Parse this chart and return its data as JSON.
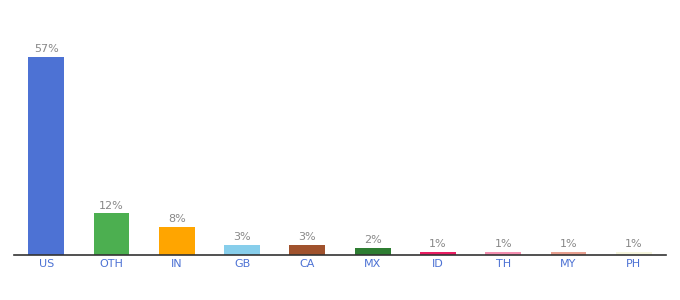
{
  "categories": [
    "US",
    "OTH",
    "IN",
    "GB",
    "CA",
    "MX",
    "ID",
    "TH",
    "MY",
    "PH"
  ],
  "values": [
    57,
    12,
    8,
    3,
    3,
    2,
    1,
    1,
    1,
    1
  ],
  "colors": [
    "#4d72d4",
    "#4CAF50",
    "#FFA500",
    "#87CEEB",
    "#A0522D",
    "#2E7D32",
    "#E91E63",
    "#F48FB1",
    "#E8A090",
    "#F5F5DC"
  ],
  "title_fontsize": 9,
  "label_fontsize": 8,
  "tick_fontsize": 8,
  "ylim": [
    0,
    63
  ],
  "label_color": "#888888",
  "tick_color": "#4d72d4"
}
